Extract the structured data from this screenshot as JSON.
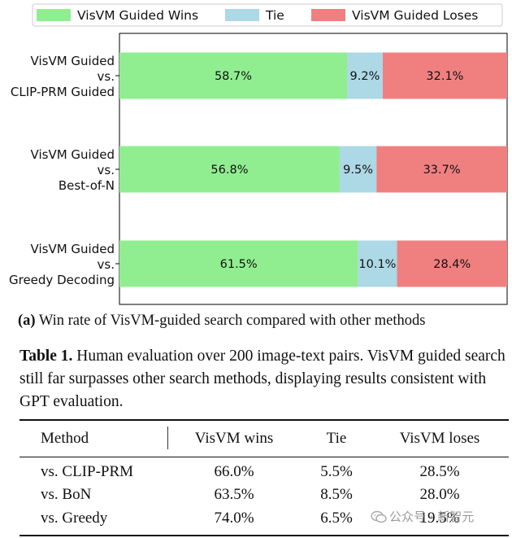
{
  "chart_data": {
    "type": "bar",
    "orientation": "horizontal",
    "stacked": true,
    "categories": [
      [
        "VisVM Guided",
        "vs.",
        "CLIP-PRM Guided"
      ],
      [
        "VisVM Guided",
        "vs.",
        "Best-of-N"
      ],
      [
        "VisVM Guided",
        "vs.",
        "Greedy Decoding"
      ]
    ],
    "series": [
      {
        "name": "VisVM Guided Wins",
        "values": [
          58.7,
          56.8,
          61.5
        ],
        "labels": [
          "58.7%",
          "56.8%",
          "61.5%"
        ],
        "color": "#90ee90"
      },
      {
        "name": "Tie",
        "values": [
          9.2,
          9.5,
          10.1
        ],
        "labels": [
          "9.2%",
          "9.5%",
          "10.1%"
        ],
        "color": "#add8e6"
      },
      {
        "name": "VisVM Guided Loses",
        "values": [
          32.1,
          33.7,
          28.4
        ],
        "labels": [
          "32.1%",
          "33.7%",
          "28.4%"
        ],
        "color": "#f08080"
      }
    ],
    "xlim": [
      0,
      100
    ],
    "legend": "top",
    "grid": false
  },
  "caption_a": {
    "label": "(a)",
    "text": " Win rate of VisVM-guided search compared with other methods"
  },
  "table_caption": {
    "label": "Table 1.",
    "text": "  Human evaluation over 200 image-text pairs.  VisVM guided search still far surpasses other search methods, displaying results consistent with GPT evaluation."
  },
  "table": {
    "headers": [
      "Method",
      "VisVM wins",
      "Tie",
      "VisVM loses"
    ],
    "rows": [
      [
        "vs. CLIP-PRM",
        "66.0%",
        "5.5%",
        "28.5%"
      ],
      [
        "vs. BoN",
        "63.5%",
        "8.5%",
        "28.0%"
      ],
      [
        "vs. Greedy",
        "74.0%",
        "6.5%",
        "19.5%"
      ]
    ]
  },
  "watermark": "公众号 · 新智元"
}
